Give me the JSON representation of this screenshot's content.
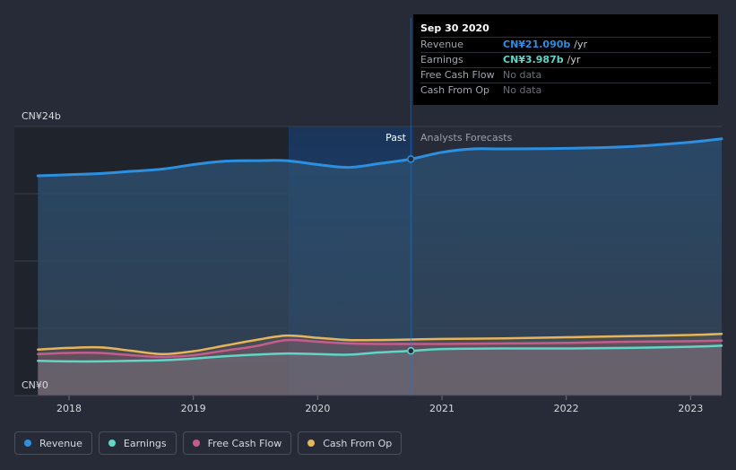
{
  "chart_data": {
    "type": "area",
    "y_axis": {
      "top_label": "CN¥24b",
      "bottom_label": "CN¥0",
      "ylim": [
        0,
        24
      ]
    },
    "x_ticks": [
      "2018",
      "2019",
      "2020",
      "2021",
      "2022",
      "2023"
    ],
    "xlim": [
      2017.56,
      2023.25
    ],
    "divider": {
      "x": 2020.75,
      "past_label": "Past",
      "forecast_label": "Analysts Forecasts"
    },
    "series": [
      {
        "name": "Revenue",
        "color": "#2d8fe0",
        "points": [
          [
            2017.75,
            19.6
          ],
          [
            2018.0,
            19.7
          ],
          [
            2018.25,
            19.8
          ],
          [
            2018.5,
            20.0
          ],
          [
            2018.75,
            20.2
          ],
          [
            2019.0,
            20.6
          ],
          [
            2019.25,
            20.9
          ],
          [
            2019.5,
            20.95
          ],
          [
            2019.75,
            20.95
          ],
          [
            2020.0,
            20.6
          ],
          [
            2020.25,
            20.35
          ],
          [
            2020.5,
            20.7
          ],
          [
            2020.75,
            21.09
          ],
          [
            2021.0,
            21.7
          ],
          [
            2021.25,
            22.0
          ],
          [
            2021.5,
            22.0
          ],
          [
            2022.0,
            22.05
          ],
          [
            2022.5,
            22.2
          ],
          [
            2023.0,
            22.6
          ],
          [
            2023.25,
            22.9
          ]
        ]
      },
      {
        "name": "Earnings",
        "color": "#5fd6c6",
        "points": [
          [
            2017.75,
            3.1
          ],
          [
            2018.0,
            3.05
          ],
          [
            2018.25,
            3.05
          ],
          [
            2018.5,
            3.1
          ],
          [
            2018.75,
            3.15
          ],
          [
            2019.0,
            3.3
          ],
          [
            2019.25,
            3.5
          ],
          [
            2019.5,
            3.65
          ],
          [
            2019.75,
            3.75
          ],
          [
            2020.0,
            3.7
          ],
          [
            2020.25,
            3.65
          ],
          [
            2020.5,
            3.85
          ],
          [
            2020.75,
            3.987
          ],
          [
            2021.0,
            4.15
          ],
          [
            2021.5,
            4.2
          ],
          [
            2022.0,
            4.2
          ],
          [
            2022.5,
            4.25
          ],
          [
            2023.0,
            4.35
          ],
          [
            2023.25,
            4.45
          ]
        ]
      },
      {
        "name": "Free Cash Flow",
        "color": "#c65c8c",
        "points": [
          [
            2017.75,
            3.7
          ],
          [
            2018.0,
            3.8
          ],
          [
            2018.25,
            3.8
          ],
          [
            2018.5,
            3.6
          ],
          [
            2018.75,
            3.45
          ],
          [
            2019.0,
            3.6
          ],
          [
            2019.25,
            4.0
          ],
          [
            2019.5,
            4.4
          ],
          [
            2019.75,
            4.95
          ],
          [
            2020.0,
            4.8
          ],
          [
            2020.25,
            4.65
          ],
          [
            2020.5,
            4.6
          ],
          [
            2020.75,
            4.6
          ],
          [
            2021.0,
            4.6
          ],
          [
            2021.5,
            4.65
          ],
          [
            2022.0,
            4.7
          ],
          [
            2022.5,
            4.8
          ],
          [
            2023.0,
            4.85
          ],
          [
            2023.25,
            4.9
          ]
        ]
      },
      {
        "name": "Cash From Op",
        "color": "#e8b45b",
        "points": [
          [
            2017.75,
            4.1
          ],
          [
            2018.0,
            4.25
          ],
          [
            2018.25,
            4.3
          ],
          [
            2018.5,
            4.0
          ],
          [
            2018.75,
            3.7
          ],
          [
            2019.0,
            3.95
          ],
          [
            2019.25,
            4.45
          ],
          [
            2019.5,
            4.95
          ],
          [
            2019.75,
            5.35
          ],
          [
            2020.0,
            5.15
          ],
          [
            2020.25,
            4.95
          ],
          [
            2020.5,
            4.95
          ],
          [
            2020.75,
            5.0
          ],
          [
            2021.0,
            5.05
          ],
          [
            2021.5,
            5.1
          ],
          [
            2022.0,
            5.2
          ],
          [
            2022.5,
            5.3
          ],
          [
            2023.0,
            5.4
          ],
          [
            2023.25,
            5.5
          ]
        ]
      }
    ]
  },
  "tooltip": {
    "date": "Sep 30 2020",
    "rows": [
      {
        "label": "Revenue",
        "value": "CN¥21.090b",
        "unit": "/yr",
        "color": "#2d8fe0"
      },
      {
        "label": "Earnings",
        "value": "CN¥3.987b",
        "unit": "/yr",
        "color": "#5fd6c6"
      },
      {
        "label": "Free Cash Flow",
        "value": "No data",
        "unit": "",
        "color": ""
      },
      {
        "label": "Cash From Op",
        "value": "No data",
        "unit": "",
        "color": ""
      }
    ]
  },
  "legend": [
    {
      "label": "Revenue",
      "color": "#2d8fe0"
    },
    {
      "label": "Earnings",
      "color": "#5fd6c6"
    },
    {
      "label": "Free Cash Flow",
      "color": "#c65c8c"
    },
    {
      "label": "Cash From Op",
      "color": "#e8b45b"
    }
  ]
}
